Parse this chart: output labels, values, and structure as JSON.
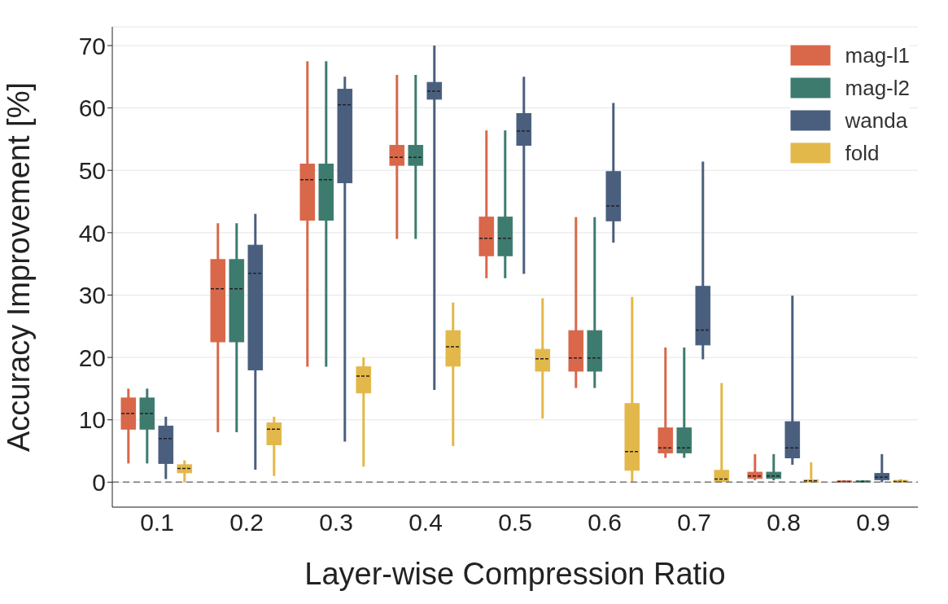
{
  "chart_data": {
    "type": "box",
    "xlabel": "Layer-wise Compression Ratio",
    "ylabel": "Accuracy Improvement [%]",
    "categories": [
      "0.1",
      "0.2",
      "0.3",
      "0.4",
      "0.5",
      "0.6",
      "0.7",
      "0.8",
      "0.9"
    ],
    "ylim": [
      -4,
      73
    ],
    "yticks": [
      0,
      10,
      20,
      30,
      40,
      50,
      60,
      70
    ],
    "grid": "y",
    "legend": "top right",
    "ref_lines": [
      {
        "axis": "y",
        "value": 0,
        "color": "#777777",
        "line_style": "dashed"
      }
    ],
    "series": [
      {
        "name": "mag-l1",
        "color": "#d9674a",
        "boxes": [
          {
            "low": 3,
            "q1": 8.5,
            "median": 11,
            "q3": 13.5,
            "high": 15
          },
          {
            "low": 8,
            "q1": 22.5,
            "median": 31,
            "q3": 35.7,
            "high": 41.5
          },
          {
            "low": 18.5,
            "q1": 42,
            "median": 48.5,
            "q3": 51,
            "high": 67.5
          },
          {
            "low": 39,
            "q1": 50.8,
            "median": 52.1,
            "q3": 54,
            "high": 65.3
          },
          {
            "low": 32.7,
            "q1": 36.3,
            "median": 39.1,
            "q3": 42.5,
            "high": 56.4
          },
          {
            "low": 15.1,
            "q1": 17.8,
            "median": 19.9,
            "q3": 24.3,
            "high": 42.5
          },
          {
            "low": 3.9,
            "q1": 4.7,
            "median": 5.5,
            "q3": 8.7,
            "high": 21.6
          },
          {
            "low": 0.3,
            "q1": 0.6,
            "median": 1,
            "q3": 1.6,
            "high": 4.5
          },
          {
            "low": 0,
            "q1": 0,
            "median": 0.1,
            "q3": 0.2,
            "high": 0.3
          }
        ]
      },
      {
        "name": "mag-l2",
        "color": "#3e7b6f",
        "boxes": [
          {
            "low": 3,
            "q1": 8.5,
            "median": 11,
            "q3": 13.5,
            "high": 15
          },
          {
            "low": 8,
            "q1": 22.5,
            "median": 31,
            "q3": 35.7,
            "high": 41.5
          },
          {
            "low": 18.5,
            "q1": 42,
            "median": 48.5,
            "q3": 51,
            "high": 67.5
          },
          {
            "low": 39,
            "q1": 50.8,
            "median": 52.1,
            "q3": 54,
            "high": 65.3
          },
          {
            "low": 32.7,
            "q1": 36.3,
            "median": 39.1,
            "q3": 42.5,
            "high": 56.4
          },
          {
            "low": 15.1,
            "q1": 17.8,
            "median": 19.9,
            "q3": 24.3,
            "high": 42.5
          },
          {
            "low": 3.9,
            "q1": 4.7,
            "median": 5.5,
            "q3": 8.7,
            "high": 21.6
          },
          {
            "low": 0.3,
            "q1": 0.6,
            "median": 1,
            "q3": 1.6,
            "high": 4.5
          },
          {
            "low": 0,
            "q1": 0,
            "median": 0.1,
            "q3": 0.2,
            "high": 0.3
          }
        ]
      },
      {
        "name": "wanda",
        "color": "#4a5f7e",
        "boxes": [
          {
            "low": 0.5,
            "q1": 3,
            "median": 7,
            "q3": 9,
            "high": 10.5
          },
          {
            "low": 2,
            "q1": 18,
            "median": 33.5,
            "q3": 38,
            "high": 43
          },
          {
            "low": 6.5,
            "q1": 48,
            "median": 60.5,
            "q3": 63,
            "high": 65
          },
          {
            "low": 14.8,
            "q1": 61.4,
            "median": 62.7,
            "q3": 64.1,
            "high": 70
          },
          {
            "low": 33.4,
            "q1": 54,
            "median": 56.3,
            "q3": 59.1,
            "high": 65
          },
          {
            "low": 38.4,
            "q1": 41.9,
            "median": 44.3,
            "q3": 49.8,
            "high": 60.8
          },
          {
            "low": 19.7,
            "q1": 22,
            "median": 24.4,
            "q3": 31.4,
            "high": 51.4
          },
          {
            "low": 2.8,
            "q1": 3.9,
            "median": 5.5,
            "q3": 9.7,
            "high": 29.9
          },
          {
            "low": 0,
            "q1": 0.4,
            "median": 0.8,
            "q3": 1.4,
            "high": 4.5
          }
        ]
      },
      {
        "name": "fold",
        "color": "#e3b84a",
        "boxes": [
          {
            "low": 0,
            "q1": 1.5,
            "median": 2.2,
            "q3": 2.8,
            "high": 3.5
          },
          {
            "low": 1,
            "q1": 6,
            "median": 8.5,
            "q3": 9.5,
            "high": 10.5
          },
          {
            "low": 2.5,
            "q1": 14.3,
            "median": 17,
            "q3": 18.5,
            "high": 20
          },
          {
            "low": 5.8,
            "q1": 18.6,
            "median": 21.7,
            "q3": 24.3,
            "high": 28.8
          },
          {
            "low": 10.2,
            "q1": 17.8,
            "median": 19.8,
            "q3": 21.3,
            "high": 29.5
          },
          {
            "low": 0,
            "q1": 1.9,
            "median": 4.9,
            "q3": 12.6,
            "high": 29.7
          },
          {
            "low": 0,
            "q1": 0.1,
            "median": 0.5,
            "q3": 1.9,
            "high": 15.9
          },
          {
            "low": 0,
            "q1": 0,
            "median": 0.2,
            "q3": 0.4,
            "high": 3.2
          },
          {
            "low": 0,
            "q1": 0,
            "median": 0.1,
            "q3": 0.3,
            "high": 0.5
          }
        ]
      }
    ]
  }
}
